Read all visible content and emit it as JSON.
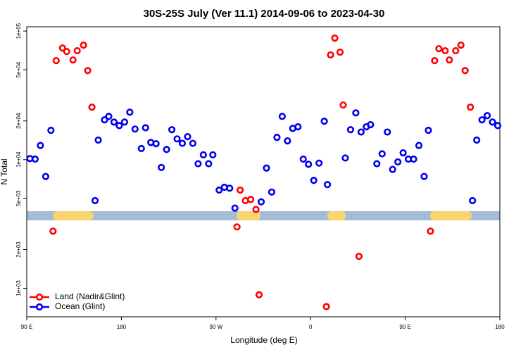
{
  "chart_data": {
    "type": "scatter",
    "title": "30S-25S July (Ver 11.1)   2014-09-06 to 2023-04-30",
    "xlabel": "Longitude (deg E)",
    "ylabel": "N Total",
    "xlim": [
      90,
      540
    ],
    "xticks": [
      {
        "value": 90,
        "label": "90 E"
      },
      {
        "value": 180,
        "label": "180"
      },
      {
        "value": 270,
        "label": "90 W"
      },
      {
        "value": 360,
        "label": "0"
      },
      {
        "value": 450,
        "label": "90 E"
      },
      {
        "value": 540,
        "label": "180"
      }
    ],
    "ylim": [
      600,
      108000
    ],
    "log_y": true,
    "yticks": [
      {
        "value": 1000,
        "label": "1e+03"
      },
      {
        "value": 2000,
        "label": "2e+03"
      },
      {
        "value": 5000,
        "label": "5e+03"
      },
      {
        "value": 10000,
        "label": "1e+04"
      },
      {
        "value": 20000,
        "label": "2e+04"
      },
      {
        "value": 50000,
        "label": "5e+04"
      },
      {
        "value": 100000,
        "label": "1e+05"
      }
    ],
    "legend": "bottom-left",
    "series": [
      {
        "name": "Land (Nadir&Glint)",
        "color": "#ff0000",
        "x": [
          115,
          118,
          124,
          128,
          134,
          138,
          144,
          148,
          152,
          290,
          293,
          298,
          303,
          308,
          311,
          375,
          379,
          383,
          388,
          391,
          406,
          474,
          478,
          482,
          488,
          492,
          498,
          503,
          507,
          512
        ],
        "values": [
          2780,
          58900,
          73800,
          69300,
          59600,
          70300,
          77700,
          49300,
          25600,
          3000,
          5800,
          4800,
          4900,
          4100,
          890,
          720,
          65200,
          88100,
          68500,
          26600,
          1770,
          2780,
          58900,
          72900,
          70300,
          59600,
          70300,
          77700,
          49300,
          25600
        ]
      },
      {
        "name": "Ocean (Glint)",
        "color": "#0000ee",
        "x": [
          93,
          98,
          103,
          108,
          113,
          155,
          158,
          164,
          168,
          173,
          178,
          183,
          188,
          193,
          199,
          203,
          208,
          213,
          218,
          223,
          228,
          233,
          238,
          243,
          248,
          253,
          258,
          263,
          267,
          273,
          278,
          283,
          288,
          313,
          318,
          323,
          328,
          333,
          338,
          343,
          348,
          353,
          358,
          363,
          368,
          373,
          376,
          393,
          398,
          403,
          408,
          413,
          417,
          423,
          428,
          433,
          438,
          443,
          448,
          453,
          458,
          463,
          468,
          472,
          514,
          518,
          523,
          528,
          533,
          538
        ],
        "values": [
          10200,
          10100,
          12900,
          7400,
          16900,
          4800,
          14200,
          20400,
          21700,
          19600,
          18400,
          19600,
          23400,
          17300,
          12200,
          17700,
          13600,
          13300,
          8700,
          12000,
          17100,
          14500,
          13400,
          15100,
          13400,
          9300,
          10900,
          9300,
          10900,
          5800,
          6100,
          6000,
          4200,
          4700,
          8600,
          5600,
          14900,
          21700,
          14000,
          17500,
          18000,
          10100,
          9200,
          6900,
          9400,
          19900,
          6400,
          10300,
          17100,
          23100,
          16400,
          18000,
          18700,
          9300,
          11100,
          16400,
          8400,
          9600,
          11300,
          10100,
          10100,
          12900,
          7400,
          16900,
          4800,
          14200,
          20400,
          22000,
          19600,
          18400
        ]
      }
    ]
  }
}
